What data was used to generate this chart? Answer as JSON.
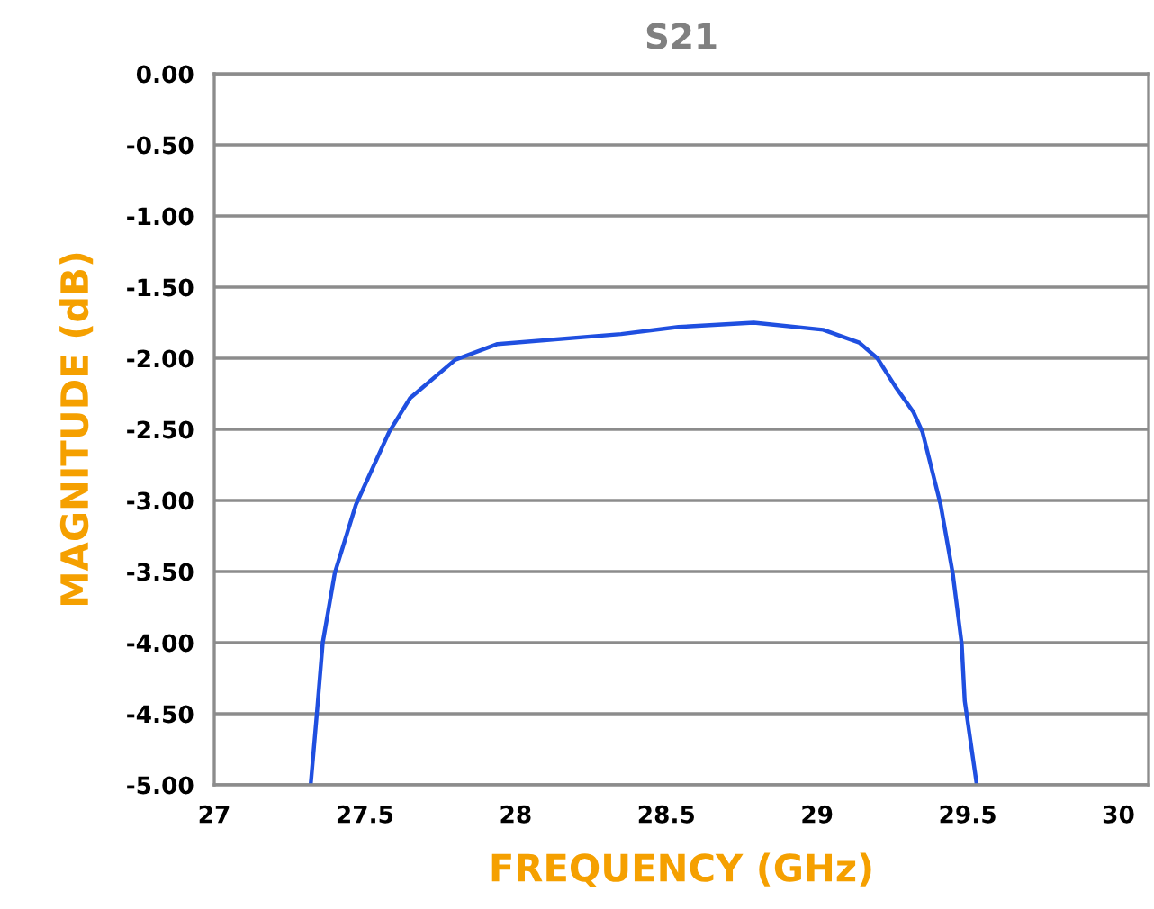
{
  "chart_data": {
    "type": "line",
    "title": "S21",
    "xlabel": "FREQUENCY (GHz)",
    "ylabel": "MAGNITUDE (dB)",
    "xlim": [
      27,
      30.1
    ],
    "xticks": [
      27,
      27.5,
      28,
      28.5,
      29,
      29.5,
      30
    ],
    "ylim": [
      -5,
      0
    ],
    "yticks": [
      {
        "value": 0,
        "label": "0.00"
      },
      {
        "value": -0.5,
        "label": "-0.50"
      },
      {
        "value": -1,
        "label": "-1.00"
      },
      {
        "value": -1.5,
        "label": "-1.50"
      },
      {
        "value": -2,
        "label": "-2.00"
      },
      {
        "value": -2.5,
        "label": "-2.50"
      },
      {
        "value": -3,
        "label": "-3.00"
      },
      {
        "value": -3.5,
        "label": "-3.50"
      },
      {
        "value": -4,
        "label": "-4.00"
      },
      {
        "value": -4.5,
        "label": "-4.50"
      },
      {
        "value": -5,
        "label": "-5.00"
      }
    ],
    "grid": "y",
    "marker": "none",
    "line_style": "solid",
    "series": [
      {
        "color": "#1f4fe0",
        "x": [
          27.32,
          27.34,
          27.36,
          27.4,
          27.47,
          27.58,
          27.65,
          27.8,
          27.94,
          28.35,
          28.54,
          28.79,
          29.02,
          29.14,
          29.2,
          29.26,
          29.32,
          29.35,
          29.41,
          29.45,
          29.48,
          29.49,
          29.53
        ],
        "values": [
          -5.0,
          -4.51,
          -4.0,
          -3.51,
          -3.03,
          -2.52,
          -2.28,
          -2.01,
          -1.9,
          -1.83,
          -1.78,
          -1.75,
          -1.8,
          -1.89,
          -2.0,
          -2.2,
          -2.38,
          -2.52,
          -3.03,
          -3.51,
          -4.01,
          -4.41,
          -5.0
        ]
      }
    ]
  }
}
